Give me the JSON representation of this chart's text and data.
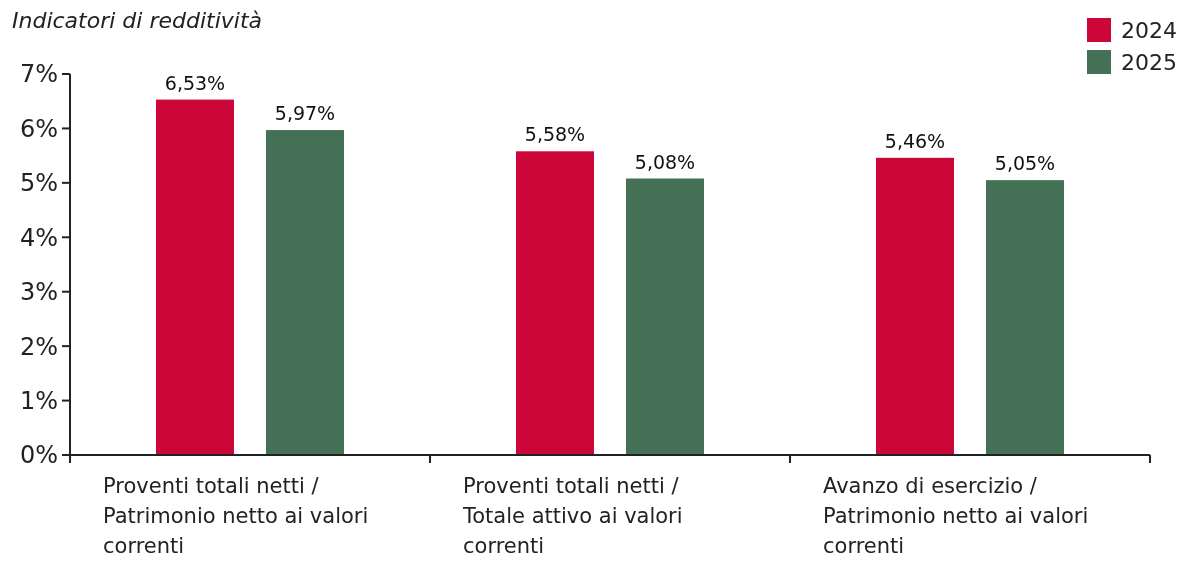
{
  "chart_data": {
    "type": "bar",
    "title": "Indicatori di redditività",
    "categories": [
      "Proventi totali netti / Patrimonio netto ai valori correnti",
      "Proventi totali netti / Totale attivo ai valori correnti",
      "Avanzo di esercizio / Patrimonio netto ai valori correnti"
    ],
    "series": [
      {
        "name": "2024",
        "color": "#cc0638",
        "values": [
          6.53,
          5.58,
          5.46
        ],
        "value_labels": [
          "6,53%",
          "5,58%",
          "5,46%"
        ]
      },
      {
        "name": "2025",
        "color": "#447155",
        "values": [
          5.97,
          5.08,
          5.05
        ],
        "value_labels": [
          "5,97%",
          "5,08%",
          "5,05%"
        ]
      }
    ],
    "ylim": [
      0,
      7
    ],
    "yticks": [
      {
        "value": 0,
        "label": "0%"
      },
      {
        "value": 1,
        "label": "1%"
      },
      {
        "value": 2,
        "label": "2%"
      },
      {
        "value": 3,
        "label": "3%"
      },
      {
        "value": 4,
        "label": "4%"
      },
      {
        "value": 5,
        "label": "5%"
      },
      {
        "value": 6,
        "label": "6%"
      },
      {
        "value": 7,
        "label": "7%"
      }
    ],
    "legend": "top right",
    "grid": false
  }
}
